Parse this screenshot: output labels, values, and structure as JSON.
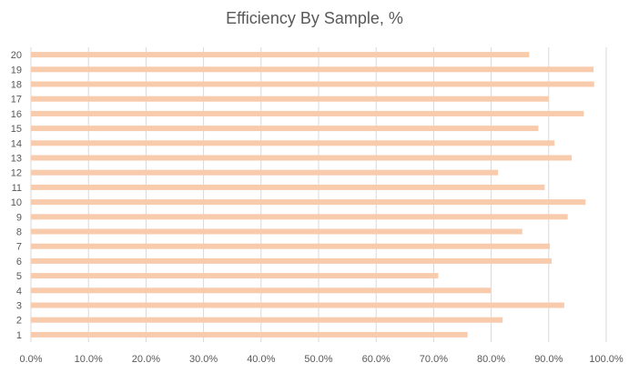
{
  "chart_data": {
    "type": "bar",
    "orientation": "horizontal",
    "title": "Efficiency By Sample, %",
    "xlabel": "",
    "ylabel": "",
    "categories": [
      "1",
      "2",
      "3",
      "4",
      "5",
      "6",
      "7",
      "8",
      "9",
      "10",
      "11",
      "12",
      "13",
      "14",
      "15",
      "16",
      "17",
      "18",
      "19",
      "20"
    ],
    "values": [
      75.9,
      82.0,
      92.7,
      79.9,
      70.8,
      90.5,
      90.2,
      85.4,
      93.3,
      96.4,
      89.3,
      81.2,
      94.0,
      91.0,
      88.2,
      96.1,
      90.0,
      97.9,
      97.8,
      86.6
    ],
    "xlim": [
      0,
      100
    ],
    "x_ticks": [
      "0.0%",
      "10.0%",
      "20.0%",
      "30.0%",
      "40.0%",
      "50.0%",
      "60.0%",
      "70.0%",
      "80.0%",
      "90.0%",
      "100.0%"
    ],
    "grid": "vertical",
    "bar_color": "#F8CBAD",
    "grid_color": "#D9D9D9",
    "text_color": "#595959"
  }
}
